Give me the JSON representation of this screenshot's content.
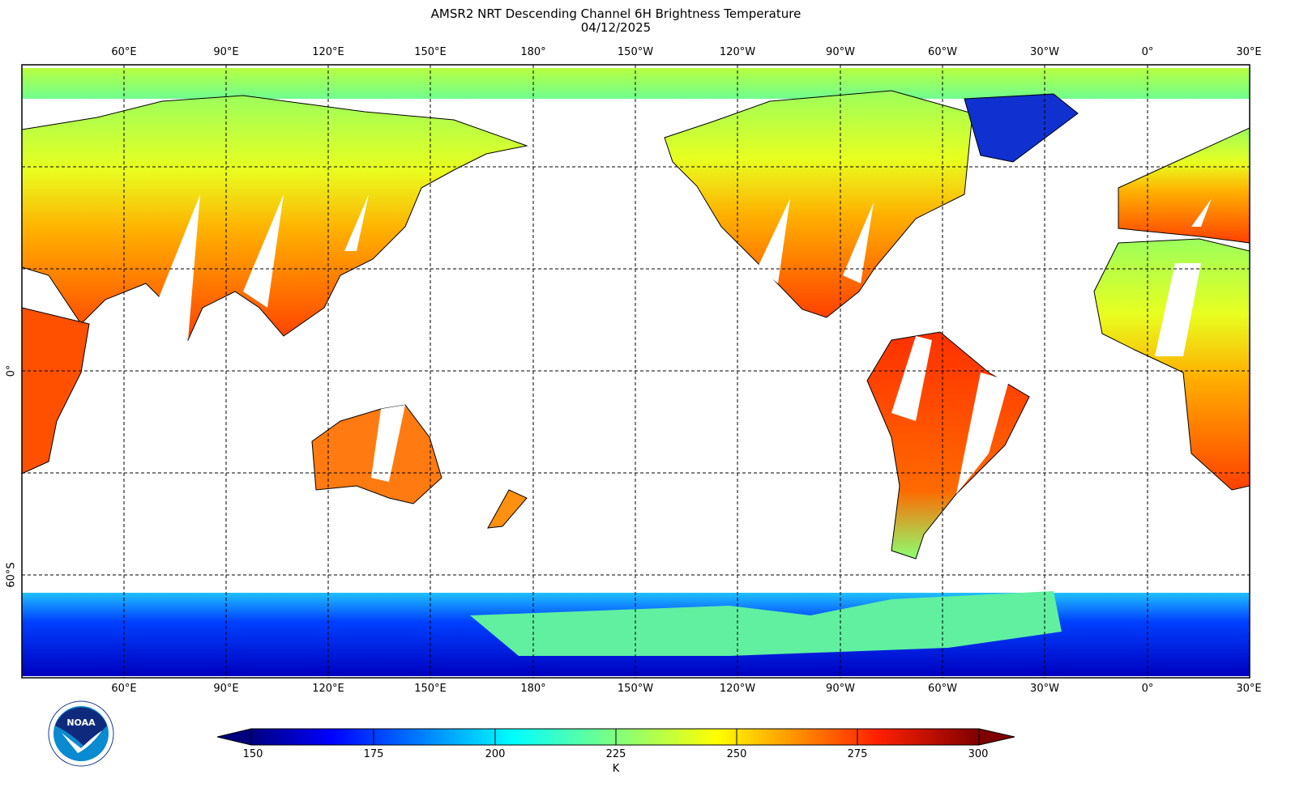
{
  "title": "AMSR2 NRT Descending Channel 6H Brightness Temperature",
  "date": "04/12/2025",
  "lon_labels": [
    "60°E",
    "90°E",
    "120°E",
    "150°E",
    "180°",
    "150°W",
    "120°W",
    "90°W",
    "60°W",
    "30°W",
    "0°",
    "30°E"
  ],
  "lat_labels": [
    "0°",
    "60°S"
  ],
  "colorbar": {
    "ticks": [
      "150",
      "175",
      "200",
      "225",
      "250",
      "275",
      "300"
    ],
    "unit": "K",
    "min": 150,
    "max": 300,
    "colors": [
      "#00007f",
      "#0000ff",
      "#007fff",
      "#00ffff",
      "#7fff7f",
      "#ffff00",
      "#ff7f00",
      "#ff0000",
      "#7f0000"
    ]
  },
  "logo": {
    "text": "NOAA",
    "ring_text": "NATIONAL OCEANIC AND ATMOSPHERIC ADMINISTRATION · U.S. DEPARTMENT OF COMMERCE"
  }
}
